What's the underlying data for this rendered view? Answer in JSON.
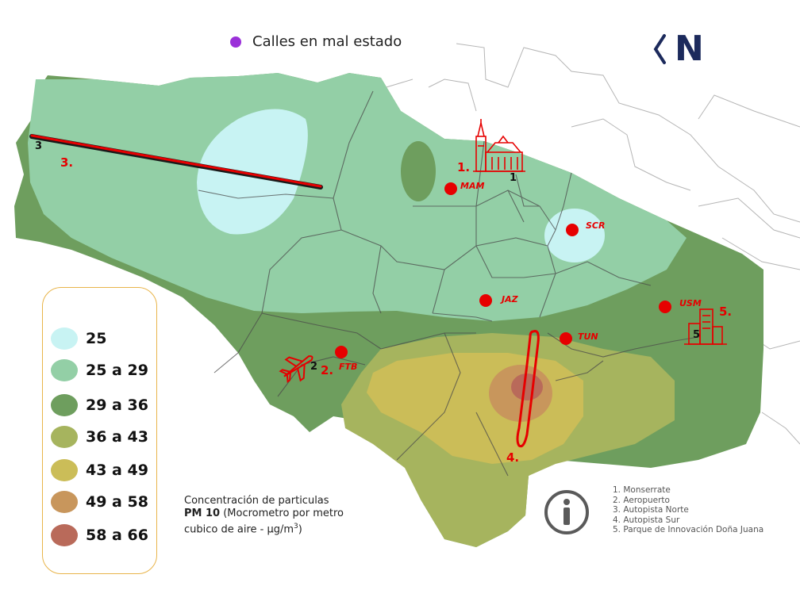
{
  "top_legend": {
    "label": "Calles en mal estado",
    "color": "#9b30d9"
  },
  "north": {
    "letter": "N"
  },
  "pm_legend": {
    "items": [
      {
        "label": "25",
        "color": "#c8f3f3"
      },
      {
        "label": "25 a 29",
        "color": "#93cfa6"
      },
      {
        "label": "29 a 36",
        "color": "#6e9e5e"
      },
      {
        "label": "36 a 43",
        "color": "#a6b45e"
      },
      {
        "label": "43 a 49",
        "color": "#cbbd58"
      },
      {
        "label": "49 a 58",
        "color": "#c8965c"
      },
      {
        "label": "58  a 66",
        "color": "#b96a5a"
      }
    ]
  },
  "caption": {
    "line1": "Concentración de particulas",
    "bold": "PM 10",
    "line2": " (Mocrometro por metro cubico de aire - µg/m",
    "sup": "3",
    "close": ")"
  },
  "stations": [
    {
      "code": "MAM"
    },
    {
      "code": "SCR"
    },
    {
      "code": "JAZ"
    },
    {
      "code": "FTB"
    },
    {
      "code": "TUN"
    },
    {
      "code": "USM"
    }
  ],
  "site_numbers": {
    "n1": "1.",
    "n2": "2.",
    "n3": "3.",
    "n4": "4.",
    "n5": "5."
  },
  "icon_numbers": {
    "i1": "1",
    "i2": "2",
    "i3": "3",
    "i5": "5"
  },
  "references": [
    "1. Monserrate",
    "2. Aeropuerto",
    "3. Autopista Norte",
    "4. Autopista Sur",
    "5. Parque de Innovación Doña Juana"
  ],
  "colors": {
    "marker": "#e60000",
    "road": "#4a4a4a",
    "district": "#a8a8a8"
  }
}
